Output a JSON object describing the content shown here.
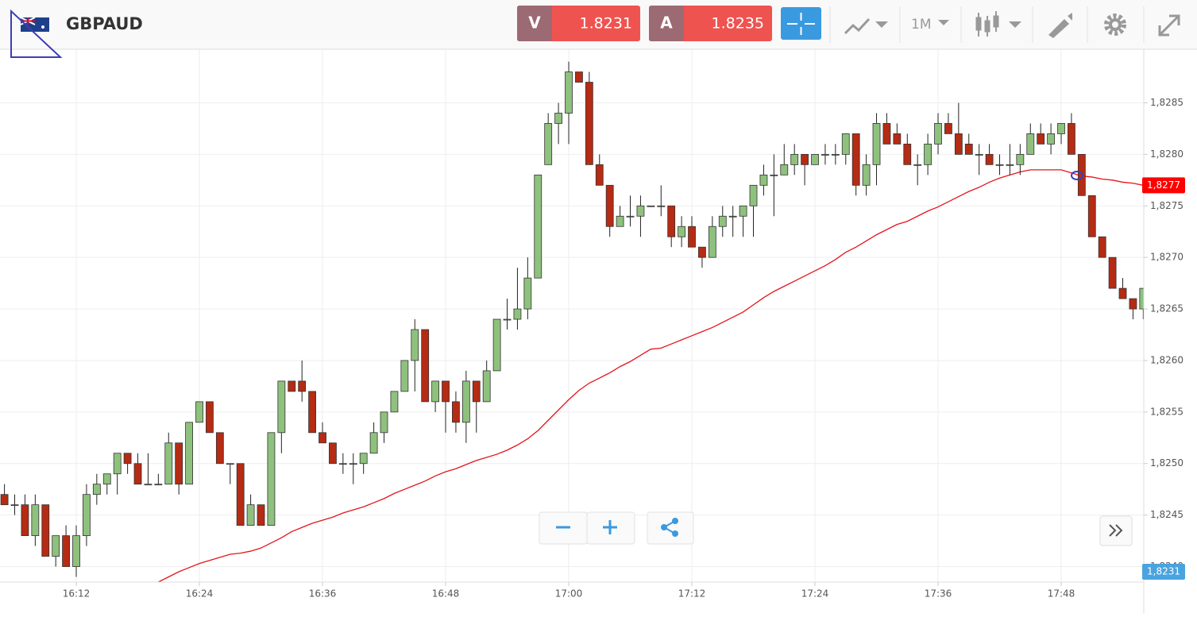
{
  "toolbar": {
    "symbol": "GBPAUD",
    "bid_label": "V",
    "bid": "1.8231",
    "ask_label": "A",
    "ask": "1.8235",
    "timeframe": "1M"
  },
  "chart_data": {
    "type": "candlestick",
    "x": [
      "16:05",
      "16:06",
      "16:07",
      "16:08",
      "16:09",
      "16:10",
      "16:11",
      "16:12",
      "16:13",
      "16:14",
      "16:15",
      "16:16",
      "16:17",
      "16:18",
      "16:19",
      "16:20",
      "16:21",
      "16:22",
      "16:23",
      "16:24",
      "16:25",
      "16:26",
      "16:27",
      "16:28",
      "16:29",
      "16:30",
      "16:31",
      "16:32",
      "16:33",
      "16:34",
      "16:35",
      "16:36",
      "16:37",
      "16:38",
      "16:39",
      "16:40",
      "16:41",
      "16:42",
      "16:43",
      "16:44",
      "16:45",
      "16:46",
      "16:47",
      "16:48",
      "16:49",
      "16:50",
      "16:51",
      "16:52",
      "16:53",
      "16:54",
      "16:55",
      "16:56",
      "16:57",
      "16:58",
      "16:59",
      "17:00",
      "17:01",
      "17:02",
      "17:03",
      "17:04",
      "17:05",
      "17:06",
      "17:07",
      "17:08",
      "17:09",
      "17:10",
      "17:11",
      "17:12",
      "17:13",
      "17:14",
      "17:15",
      "17:16",
      "17:17",
      "17:18",
      "17:19",
      "17:20",
      "17:21",
      "17:22",
      "17:23",
      "17:24",
      "17:25",
      "17:26",
      "17:27",
      "17:28",
      "17:29",
      "17:30",
      "17:31",
      "17:32",
      "17:33",
      "17:34",
      "17:35",
      "17:36",
      "17:37",
      "17:38",
      "17:39",
      "17:40",
      "17:41",
      "17:42",
      "17:43",
      "17:44",
      "17:45",
      "17:46",
      "17:47",
      "17:48",
      "17:49",
      "17:50",
      "17:51",
      "17:52",
      "17:53",
      "17:54",
      "17:55",
      "17:56"
    ],
    "open": [
      1.8247,
      1.8246,
      1.8246,
      1.8243,
      1.8246,
      1.8241,
      1.8243,
      1.824,
      1.8243,
      1.8247,
      1.8248,
      1.8249,
      1.8251,
      1.825,
      1.8248,
      1.8248,
      1.8248,
      1.8252,
      1.8248,
      1.8254,
      1.8256,
      1.8253,
      1.825,
      1.825,
      1.8244,
      1.8246,
      1.8244,
      1.8253,
      1.8258,
      1.8258,
      1.8257,
      1.8253,
      1.8252,
      1.825,
      1.825,
      1.825,
      1.8251,
      1.8253,
      1.8255,
      1.8257,
      1.826,
      1.8263,
      1.8256,
      1.8258,
      1.8256,
      1.8254,
      1.8258,
      1.8256,
      1.8259,
      1.8264,
      1.8264,
      1.8265,
      1.8268,
      1.8279,
      1.8283,
      1.8284,
      1.8288,
      1.8287,
      1.8279,
      1.8277,
      1.8273,
      1.8274,
      1.8274,
      1.8275,
      1.8275,
      1.8275,
      1.8272,
      1.8273,
      1.8271,
      1.827,
      1.8273,
      1.8274,
      1.8274,
      1.8275,
      1.8277,
      1.8278,
      1.8278,
      1.8279,
      1.828,
      1.8279,
      1.828,
      1.828,
      1.828,
      1.8282,
      1.8277,
      1.8279,
      1.8283,
      1.8282,
      1.8281,
      1.8279,
      1.8279,
      1.8281,
      1.8283,
      1.8282,
      1.8281,
      1.828,
      1.828,
      1.8279,
      1.8279,
      1.8279,
      1.828,
      1.8282,
      1.8281,
      1.8282,
      1.8283,
      1.828,
      1.8276,
      1.8272,
      1.827,
      1.8267,
      1.8266,
      1.8265
    ],
    "high": [
      1.8248,
      1.8247,
      1.8247,
      1.8247,
      1.8246,
      1.8243,
      1.8244,
      1.8244,
      1.8248,
      1.8249,
      1.8249,
      1.8251,
      1.8251,
      1.8251,
      1.8251,
      1.8249,
      1.8253,
      1.8252,
      1.8254,
      1.8256,
      1.8256,
      1.8253,
      1.825,
      1.825,
      1.8247,
      1.8246,
      1.8253,
      1.8258,
      1.8258,
      1.826,
      1.8257,
      1.8254,
      1.8252,
      1.8251,
      1.8251,
      1.8251,
      1.8254,
      1.8255,
      1.8257,
      1.826,
      1.8264,
      1.8263,
      1.8258,
      1.8258,
      1.8257,
      1.8259,
      1.8258,
      1.826,
      1.8264,
      1.8266,
      1.8269,
      1.827,
      1.8278,
      1.8284,
      1.8285,
      1.8289,
      1.8288,
      1.8288,
      1.828,
      1.8277,
      1.8275,
      1.8276,
      1.8276,
      1.8275,
      1.8277,
      1.8275,
      1.8274,
      1.8274,
      1.8271,
      1.8274,
      1.8275,
      1.8275,
      1.8275,
      1.8277,
      1.8279,
      1.828,
      1.8281,
      1.8281,
      1.828,
      1.828,
      1.8281,
      1.8281,
      1.8282,
      1.8282,
      1.828,
      1.8284,
      1.8284,
      1.8283,
      1.8282,
      1.828,
      1.8282,
      1.8284,
      1.8284,
      1.8285,
      1.8282,
      1.8281,
      1.8281,
      1.828,
      1.8281,
      1.8281,
      1.8283,
      1.8283,
      1.8283,
      1.8283,
      1.8284,
      1.828,
      1.8276,
      1.8272,
      1.827,
      1.8268,
      1.8266,
      1.8267
    ],
    "low": [
      1.8246,
      1.8245,
      1.8243,
      1.8242,
      1.8241,
      1.824,
      1.824,
      1.8239,
      1.8242,
      1.8246,
      1.8247,
      1.8247,
      1.8249,
      1.8248,
      1.8248,
      1.8248,
      1.8248,
      1.8247,
      1.8248,
      1.8254,
      1.8253,
      1.825,
      1.8248,
      1.8244,
      1.8244,
      1.8244,
      1.8244,
      1.8251,
      1.8257,
      1.8256,
      1.8253,
      1.8252,
      1.825,
      1.8249,
      1.8248,
      1.8249,
      1.8251,
      1.8252,
      1.8255,
      1.8257,
      1.8257,
      1.8256,
      1.8255,
      1.8253,
      1.8253,
      1.8252,
      1.8253,
      1.8256,
      1.8259,
      1.8263,
      1.8263,
      1.8264,
      1.8268,
      1.8279,
      1.8281,
      1.8281,
      1.8287,
      1.8279,
      1.8277,
      1.8272,
      1.8273,
      1.8273,
      1.8272,
      1.8275,
      1.8274,
      1.8271,
      1.8271,
      1.8271,
      1.8269,
      1.827,
      1.8272,
      1.8272,
      1.8272,
      1.8272,
      1.8276,
      1.8274,
      1.8278,
      1.8278,
      1.8277,
      1.8279,
      1.8279,
      1.8279,
      1.8279,
      1.8276,
      1.8276,
      1.8277,
      1.8281,
      1.8281,
      1.8279,
      1.8277,
      1.8278,
      1.828,
      1.8282,
      1.828,
      1.828,
      1.8278,
      1.8279,
      1.8278,
      1.8278,
      1.8278,
      1.828,
      1.8281,
      1.828,
      1.8281,
      1.828,
      1.8276,
      1.8272,
      1.827,
      1.8267,
      1.8266,
      1.8264,
      1.8264
    ],
    "close": [
      1.8246,
      1.8246,
      1.8243,
      1.8246,
      1.8241,
      1.8243,
      1.824,
      1.8243,
      1.8247,
      1.8248,
      1.8249,
      1.8251,
      1.825,
      1.8248,
      1.8248,
      1.8248,
      1.8252,
      1.8248,
      1.8254,
      1.8256,
      1.8253,
      1.825,
      1.825,
      1.8244,
      1.8246,
      1.8244,
      1.8253,
      1.8258,
      1.8257,
      1.8257,
      1.8253,
      1.8252,
      1.825,
      1.825,
      1.825,
      1.8251,
      1.8253,
      1.8255,
      1.8257,
      1.826,
      1.8263,
      1.8256,
      1.8258,
      1.8256,
      1.8254,
      1.8258,
      1.8256,
      1.8259,
      1.8264,
      1.8264,
      1.8265,
      1.8268,
      1.8278,
      1.8283,
      1.8284,
      1.8288,
      1.8287,
      1.8279,
      1.8277,
      1.8273,
      1.8274,
      1.8274,
      1.8275,
      1.8275,
      1.8275,
      1.8272,
      1.8273,
      1.8271,
      1.827,
      1.8273,
      1.8274,
      1.8274,
      1.8275,
      1.8277,
      1.8278,
      1.8278,
      1.8279,
      1.828,
      1.8279,
      1.828,
      1.828,
      1.828,
      1.8282,
      1.8277,
      1.8279,
      1.8283,
      1.8281,
      1.8281,
      1.8279,
      1.8279,
      1.8281,
      1.8283,
      1.8282,
      1.828,
      1.828,
      1.828,
      1.8279,
      1.8279,
      1.8279,
      1.828,
      1.8282,
      1.8281,
      1.8282,
      1.8283,
      1.828,
      1.8276,
      1.8272,
      1.827,
      1.8267,
      1.8266,
      1.8265,
      1.8267
    ],
    "up_color": "#8fc17e",
    "down_color": "#b52b13",
    "ma": {
      "color": "#e4151b",
      "values": [
        null,
        null,
        null,
        null,
        null,
        null,
        null,
        null,
        null,
        null,
        null,
        null,
        null,
        null,
        null,
        1.82385,
        1.8239,
        1.82395,
        1.82399,
        1.82403,
        1.82406,
        1.82409,
        1.82412,
        1.82413,
        1.82415,
        1.82418,
        1.82423,
        1.82428,
        1.82434,
        1.82438,
        1.82442,
        1.82445,
        1.82448,
        1.82452,
        1.82455,
        1.82458,
        1.82462,
        1.82466,
        1.82471,
        1.82475,
        1.82479,
        1.82483,
        1.82488,
        1.82492,
        1.82495,
        1.82499,
        1.82503,
        1.82506,
        1.82509,
        1.82513,
        1.82518,
        1.82524,
        1.82532,
        1.82542,
        1.82552,
        1.82562,
        1.82571,
        1.82578,
        1.82583,
        1.82588,
        1.82594,
        1.82599,
        1.82605,
        1.82611,
        1.82612,
        1.82616,
        1.8262,
        1.82624,
        1.82628,
        1.82632,
        1.82637,
        1.82642,
        1.82647,
        1.82654,
        1.82661,
        1.82667,
        1.82672,
        1.82677,
        1.82682,
        1.82687,
        1.82692,
        1.82698,
        1.82705,
        1.8271,
        1.82716,
        1.82722,
        1.82727,
        1.82732,
        1.82735,
        1.8274,
        1.82745,
        1.82749,
        1.82754,
        1.82759,
        1.82764,
        1.82768,
        1.82773,
        1.82777,
        1.8278,
        1.82783,
        1.82785,
        1.82785,
        1.82785,
        1.82785,
        1.82782,
        1.82779,
        1.82778,
        1.82776,
        1.82775,
        1.82773,
        1.82772,
        1.8277
      ]
    },
    "xlim": [
      "16:04:34",
      "17:56:03"
    ],
    "xticks": [
      "16:12",
      "16:24",
      "16:36",
      "16:48",
      "17:00",
      "17:12",
      "17:24",
      "17:36",
      "17:48"
    ],
    "ylim": [
      1.82385,
      1.82902
    ],
    "yticks": [
      {
        "value": 1.824,
        "label": "1,8240"
      },
      {
        "value": 1.8245,
        "label": "1,8245"
      },
      {
        "value": 1.825,
        "label": "1,8250"
      },
      {
        "value": 1.8255,
        "label": "1,8255"
      },
      {
        "value": 1.826,
        "label": "1,8260"
      },
      {
        "value": 1.8265,
        "label": "1,8265"
      },
      {
        "value": 1.827,
        "label": "1,8270"
      },
      {
        "value": 1.8275,
        "label": "1,8275"
      },
      {
        "value": 1.828,
        "label": "1,8280"
      },
      {
        "value": 1.8285,
        "label": "1,8285"
      }
    ],
    "grid": true,
    "price_labels": [
      {
        "value": 1.8277,
        "label": "1,8277",
        "color": "#ff0000"
      },
      {
        "value": 1.8231,
        "label": "1,8231",
        "color": "#4aa3df"
      }
    ]
  }
}
